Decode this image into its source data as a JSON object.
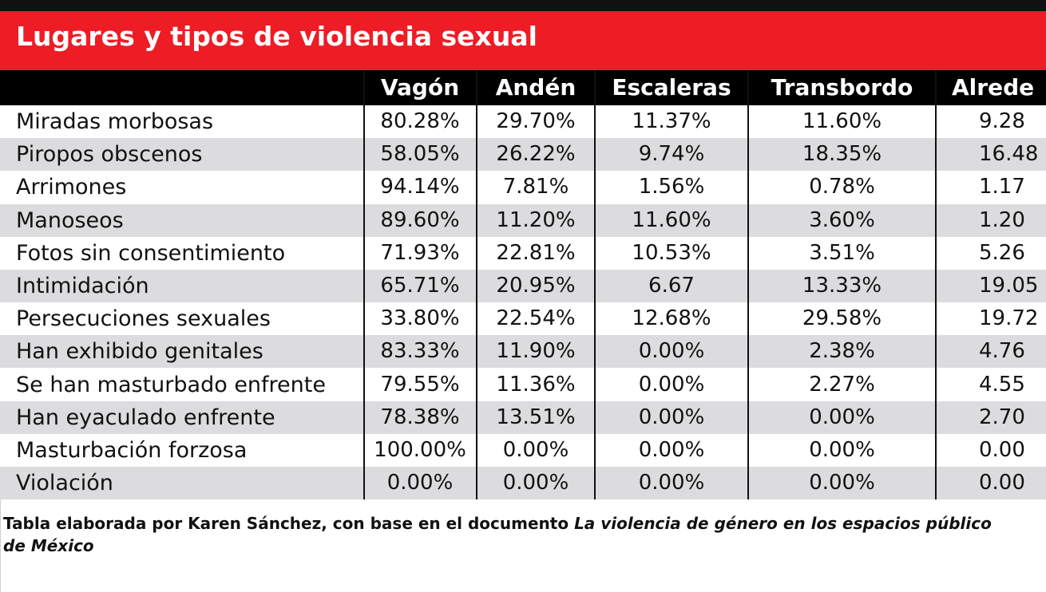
{
  "chart_data": {
    "type": "table",
    "title": "Lugares y tipos de violencia sexual",
    "columns": [
      "",
      "Vagón",
      "Andén",
      "Escaleras",
      "Transbordo",
      "Alrede"
    ],
    "rows": [
      {
        "label": "Miradas morbosas",
        "values": [
          "80.28%",
          "29.70%",
          "11.37%",
          "11.60%",
          "9.28"
        ]
      },
      {
        "label": "Piropos obscenos",
        "values": [
          "58.05%",
          "26.22%",
          "9.74%",
          "18.35%",
          "16.48"
        ]
      },
      {
        "label": "Arrimones",
        "values": [
          "94.14%",
          "7.81%",
          "1.56%",
          "0.78%",
          "1.17"
        ]
      },
      {
        "label": "Manoseos",
        "values": [
          "89.60%",
          "11.20%",
          "11.60%",
          "3.60%",
          "1.20"
        ]
      },
      {
        "label": "Fotos sin consentimiento",
        "values": [
          "71.93%",
          "22.81%",
          "10.53%",
          "3.51%",
          "5.26"
        ]
      },
      {
        "label": "Intimidación",
        "values": [
          "65.71%",
          "20.95%",
          "6.67",
          "13.33%",
          "19.05"
        ]
      },
      {
        "label": "Persecuciones sexuales",
        "values": [
          "33.80%",
          "22.54%",
          "12.68%",
          "29.58%",
          "19.72"
        ]
      },
      {
        "label": "Han exhibido genitales",
        "values": [
          "83.33%",
          "11.90%",
          "0.00%",
          "2.38%",
          "4.76"
        ]
      },
      {
        "label": "Se han masturbado enfrente",
        "values": [
          "79.55%",
          "11.36%",
          "0.00%",
          "2.27%",
          "4.55"
        ]
      },
      {
        "label": "Han eyaculado enfrente",
        "values": [
          "78.38%",
          "13.51%",
          "0.00%",
          "0.00%",
          "2.70"
        ]
      },
      {
        "label": "Masturbación forzosa",
        "values": [
          "100.00%",
          "0.00%",
          "0.00%",
          "0.00%",
          "0.00"
        ]
      },
      {
        "label": "Violación",
        "values": [
          "0.00%",
          "0.00%",
          "0.00%",
          "0.00%",
          "0.00"
        ]
      }
    ],
    "footnote_prefix": "Tabla elaborada por Karen Sánchez, con base en el documento ",
    "footnote_italic_1": "La violencia de género en los espacios público",
    "footnote_italic_2": "de México"
  },
  "colors": {
    "title_band": "#ee1c25",
    "header_band": "#000000",
    "row_alt": "#dcdcde",
    "text": "#111111"
  }
}
